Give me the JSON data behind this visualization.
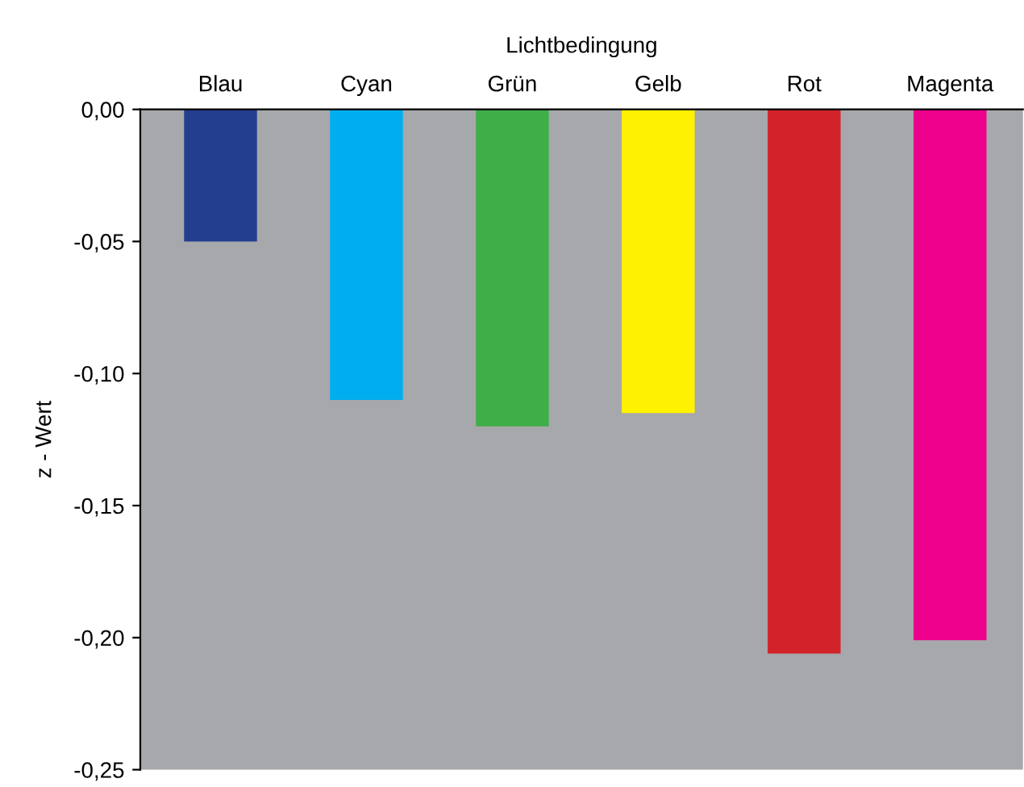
{
  "chart_data": {
    "type": "bar",
    "xlabel": "Lichtbedingung",
    "ylabel": "z - Wert",
    "categories": [
      "Blau",
      "Cyan",
      "Grün",
      "Gelb",
      "Rot",
      "Magenta"
    ],
    "values": [
      -0.05,
      -0.11,
      -0.12,
      -0.115,
      -0.206,
      -0.201
    ],
    "colors": [
      "#233e8f",
      "#00aeef",
      "#3fae49",
      "#fff200",
      "#d2232a",
      "#ec008c"
    ],
    "ylim": [
      -0.25,
      0
    ],
    "yticks": [
      {
        "value": 0,
        "label": "0,00"
      },
      {
        "value": -0.05,
        "label": "-0,05"
      },
      {
        "value": -0.1,
        "label": "-0,10"
      },
      {
        "value": -0.15,
        "label": "-0,15"
      },
      {
        "value": -0.2,
        "label": "-0,20"
      },
      {
        "value": -0.25,
        "label": "-0,25"
      }
    ],
    "grid": false,
    "legend": false
  }
}
